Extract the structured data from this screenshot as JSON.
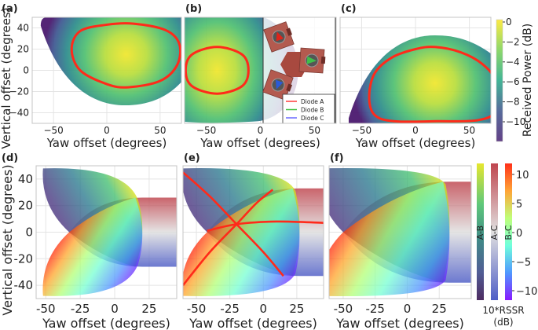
{
  "figure": {
    "top_colorbar": {
      "label": "Received Power (dB)",
      "colormap": "viridis",
      "range": [
        -12,
        0
      ],
      "ticks": [
        "0",
        "−2",
        "−4",
        "−6",
        "−8",
        "−10"
      ]
    },
    "bottom_colorbars": {
      "bars": [
        {
          "label": "A-B",
          "colormap": "viridis (dark)"
        },
        {
          "label": "A-C",
          "colormap": "coolwarm (red high)"
        },
        {
          "label": "B-C",
          "colormap": "rainbow"
        }
      ],
      "range": [
        -12,
        12
      ],
      "ticks": [
        "10",
        "5",
        "0",
        "−5",
        "−10"
      ],
      "label_line1": "10*RSSR",
      "label_line2": "(dB)"
    },
    "inset_legend": [
      {
        "label": "Diode A",
        "color": "#ff3b3b"
      },
      {
        "label": "Diode B",
        "color": "#3fbf3f"
      },
      {
        "label": "Diode C",
        "color": "#6b6bff"
      }
    ]
  },
  "chart_data": [
    {
      "panel": "(a)",
      "type": "heatmap",
      "xlabel": "Yaw offset (degrees)",
      "ylabel": "Vertical offset (degrees)",
      "xlim": [
        -70,
        70
      ],
      "ylim": [
        -50,
        50
      ],
      "grid": true,
      "xticks": [
        "−50",
        "0",
        "50"
      ],
      "yticks": [
        "40",
        "20",
        "0",
        "−20",
        "−40"
      ],
      "peak": [
        18,
        15
      ],
      "contour": [
        [
          -33,
          20
        ],
        [
          -25,
          37
        ],
        [
          0,
          43
        ],
        [
          25,
          44
        ],
        [
          55,
          38
        ],
        [
          68,
          25
        ],
        [
          66,
          5
        ],
        [
          50,
          -10
        ],
        [
          20,
          -16
        ],
        [
          0,
          -13
        ],
        [
          -25,
          0
        ]
      ]
    },
    {
      "panel": "(b)",
      "type": "heatmap",
      "xlabel": "Yaw offset (degrees)",
      "ylabel": "",
      "xlim": [
        -70,
        70
      ],
      "ylim": [
        -50,
        50
      ],
      "grid": true,
      "xticks": [
        "−50",
        "0",
        "50"
      ],
      "yticks": [],
      "peak": [
        -40,
        0
      ],
      "contour": [
        [
          -69,
          0
        ],
        [
          -63,
          15
        ],
        [
          -40,
          22
        ],
        [
          -17,
          15
        ],
        [
          -11,
          0
        ],
        [
          -17,
          -15
        ],
        [
          -40,
          -22
        ],
        [
          -63,
          -15
        ]
      ]
    },
    {
      "panel": "(c)",
      "type": "heatmap",
      "xlabel": "Yaw offset (degrees)",
      "ylabel": "",
      "xlim": [
        -70,
        70
      ],
      "ylim": [
        -50,
        50
      ],
      "grid": true,
      "xticks": [
        "−50",
        "0",
        "50"
      ],
      "yticks": [],
      "peak": [
        18,
        -12
      ],
      "contour": [
        [
          -43,
          -25
        ],
        [
          -38,
          -3
        ],
        [
          -22,
          12
        ],
        [
          0,
          20
        ],
        [
          18,
          22
        ],
        [
          42,
          17
        ],
        [
          62,
          6
        ],
        [
          74,
          -10
        ],
        [
          74,
          -38
        ],
        [
          58,
          -47
        ],
        [
          20,
          -48
        ],
        [
          -20,
          -48
        ],
        [
          -38,
          -42
        ]
      ]
    },
    {
      "panel": "(d)",
      "type": "heatmap",
      "xlabel": "Yaw offset (degrees)",
      "ylabel": "Vertical offset (degrees)",
      "xlim": [
        -57,
        45
      ],
      "ylim": [
        -50,
        50
      ],
      "grid": true,
      "xticks": [
        "-50",
        "-25",
        "0",
        "25"
      ],
      "yticks": [
        "40",
        "20",
        "0",
        "-20",
        "-40"
      ],
      "regions": {
        "tip": -33,
        "half_height": 26,
        "right_edge": 20
      }
    },
    {
      "panel": "(e)",
      "type": "heatmap",
      "xlabel": "Yaw offset (degrees)",
      "ylabel": "",
      "xlim": [
        -60,
        45
      ],
      "ylim": [
        -50,
        50
      ],
      "grid": true,
      "xticks": [
        "-50",
        "-25",
        "0",
        "25"
      ],
      "yticks": [],
      "regions": {
        "tip": -42,
        "half_height": 33,
        "right_edge": 27
      },
      "zero_lines": [
        [
          [
            -60,
            45
          ],
          [
            -40,
            27
          ],
          [
            -20,
            6
          ],
          [
            0,
            -15
          ],
          [
            15,
            -33
          ]
        ],
        [
          [
            -60,
            -40
          ],
          [
            -40,
            -15
          ],
          [
            -20,
            6
          ],
          [
            -5,
            22
          ],
          [
            7,
            32
          ]
        ],
        [
          [
            -42,
            1
          ],
          [
            -20,
            6
          ],
          [
            10,
            8
          ],
          [
            45,
            7
          ]
        ]
      ]
    },
    {
      "panel": "(f)",
      "type": "heatmap",
      "xlabel": "Yaw offset (degrees)",
      "ylabel": "",
      "xlim": [
        -61,
        50
      ],
      "ylim": [
        -50,
        50
      ],
      "grid": true,
      "xticks": [
        "-50",
        "-25",
        "0",
        "25"
      ],
      "yticks": [],
      "regions": {
        "tip": -50,
        "half_height": 38,
        "right_edge": 33
      }
    }
  ]
}
